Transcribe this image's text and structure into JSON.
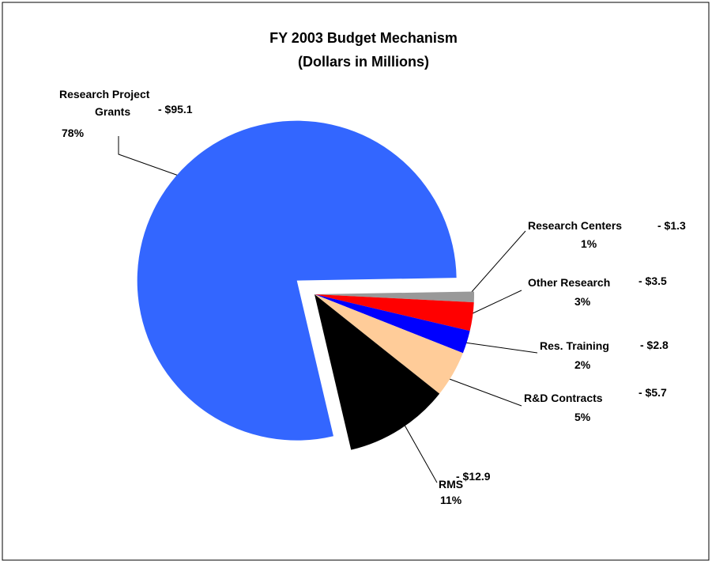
{
  "chart_data": {
    "type": "pie",
    "title": [
      "FY 2003 Budget Mechanism",
      "(Dollars in Millions)"
    ],
    "categories": [
      "Research Centers",
      "Other Research",
      "Res. Training",
      "R&D Contracts",
      "RMS",
      "Research Project Grants"
    ],
    "values": [
      1.3,
      3.5,
      2.8,
      5.7,
      12.9,
      95.1
    ],
    "value_labels": [
      "- $1.3",
      "- $3.5",
      "- $2.8",
      "- $5.7",
      "- $12.9",
      "- $95.1"
    ],
    "percents": [
      1,
      3,
      2,
      5,
      11,
      78
    ],
    "percent_labels": [
      "1%",
      "3%",
      "2%",
      "5%",
      "11%",
      "78%"
    ],
    "colors": [
      "#999999",
      "#ff0000",
      "#0000ff",
      "#ffcc99",
      "#000000",
      "#3366ff"
    ],
    "explode": [
      0,
      0,
      0,
      0,
      0,
      0.14
    ]
  }
}
